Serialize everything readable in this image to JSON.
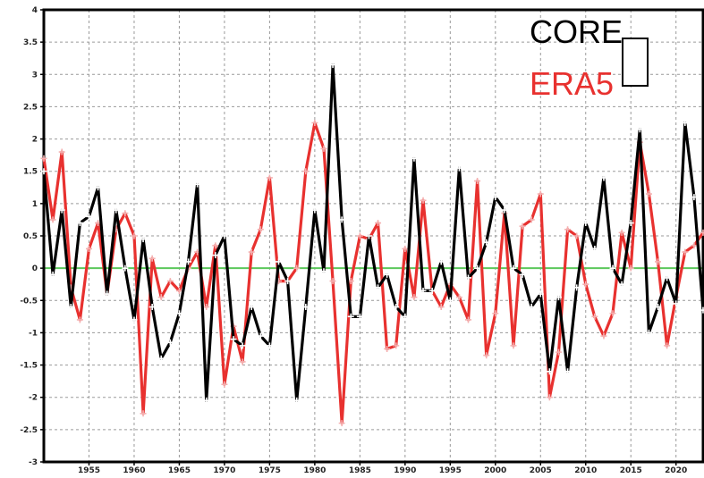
{
  "chart_data": {
    "type": "line",
    "title": "",
    "xlabel": "",
    "ylabel": "",
    "xlim": [
      1950,
      2023
    ],
    "ylim": [
      -3,
      4
    ],
    "grid": true,
    "legend_position": "top-right",
    "zero_line_color": "#5cc85c",
    "yticks": [
      {
        "value": 4,
        "label": "4"
      },
      {
        "value": 3.5,
        "label": "3.5"
      },
      {
        "value": 3,
        "label": "3"
      },
      {
        "value": 2.5,
        "label": "2.5"
      },
      {
        "value": 2,
        "label": "2"
      },
      {
        "value": 1.5,
        "label": "1.5"
      },
      {
        "value": 1,
        "label": "1"
      },
      {
        "value": 0.5,
        "label": "0.5"
      },
      {
        "value": 0,
        "label": "0"
      },
      {
        "value": -0.5,
        "label": "-0.5"
      },
      {
        "value": -1,
        "label": "-1"
      },
      {
        "value": -1.5,
        "label": "-1.5"
      },
      {
        "value": -2,
        "label": "-2"
      },
      {
        "value": -2.5,
        "label": "-2.5"
      },
      {
        "value": -3,
        "label": "-3"
      }
    ],
    "xticks": [
      {
        "value": 1955,
        "label": "1955"
      },
      {
        "value": 1960,
        "label": "1960"
      },
      {
        "value": 1965,
        "label": "1965"
      },
      {
        "value": 1970,
        "label": "1970"
      },
      {
        "value": 1975,
        "label": "1975"
      },
      {
        "value": 1980,
        "label": "1980"
      },
      {
        "value": 1985,
        "label": "1985"
      },
      {
        "value": 1990,
        "label": "1990"
      },
      {
        "value": 1995,
        "label": "1995"
      },
      {
        "value": 2000,
        "label": "2000"
      },
      {
        "value": 2005,
        "label": "2005"
      },
      {
        "value": 2010,
        "label": "2010"
      },
      {
        "value": 2015,
        "label": "2015"
      },
      {
        "value": 2020,
        "label": "2020"
      }
    ],
    "series": [
      {
        "name": "CORE",
        "color": "#000000",
        "x": [
          1950,
          1951,
          1952,
          1953,
          1954,
          1955,
          1956,
          1957,
          1958,
          1959,
          1960,
          1961,
          1962,
          1963,
          1964,
          1965,
          1966,
          1967,
          1968,
          1969,
          1970,
          1971,
          1972,
          1973,
          1974,
          1975,
          1976,
          1977,
          1978,
          1979,
          1980,
          1981,
          1982,
          1983,
          1984,
          1985,
          1986,
          1987,
          1988,
          1989,
          1990,
          1991,
          1992,
          1993,
          1994,
          1995,
          1996,
          1997,
          1998,
          1999,
          2000,
          2001,
          2002,
          2003,
          2004,
          2005,
          2006,
          2007,
          2008,
          2009,
          2010,
          2011,
          2012,
          2013,
          2014,
          2015,
          2016,
          2017,
          2018,
          2019,
          2020,
          2021,
          2022,
          2023
        ],
        "y": [
          1.5,
          -0.1,
          0.9,
          -0.6,
          0.7,
          0.8,
          1.25,
          -0.4,
          0.9,
          0.0,
          -0.8,
          0.45,
          -0.6,
          -1.4,
          -1.15,
          -0.7,
          0.1,
          1.3,
          -2.05,
          0.2,
          0.5,
          -1.1,
          -1.2,
          -0.6,
          -1.05,
          -1.2,
          0.1,
          -0.2,
          -2.05,
          -0.6,
          0.9,
          -0.05,
          3.15,
          0.75,
          -0.75,
          -0.75,
          0.5,
          -0.3,
          -0.1,
          -0.6,
          -0.75,
          1.7,
          -0.35,
          -0.35,
          0.1,
          -0.5,
          1.55,
          -0.15,
          0.0,
          0.4,
          1.1,
          0.9,
          0.0,
          -0.1,
          -0.6,
          -0.4,
          -1.6,
          -0.45,
          -1.6,
          -0.3,
          0.7,
          0.3,
          1.4,
          0.0,
          -0.25,
          0.7,
          2.15,
          -1.0,
          -0.6,
          -0.15,
          -0.55,
          2.25,
          1.1,
          -0.65
        ]
      },
      {
        "name": "ERA5",
        "color": "#e8312f",
        "x": [
          1950,
          1951,
          1952,
          1953,
          1954,
          1955,
          1956,
          1957,
          1958,
          1959,
          1960,
          1961,
          1962,
          1963,
          1964,
          1965,
          1966,
          1967,
          1968,
          1969,
          1970,
          1971,
          1972,
          1973,
          1974,
          1975,
          1976,
          1977,
          1978,
          1979,
          1980,
          1981,
          1982,
          1983,
          1984,
          1985,
          1986,
          1987,
          1988,
          1989,
          1990,
          1991,
          1992,
          1993,
          1994,
          1995,
          1996,
          1997,
          1998,
          1999,
          2000,
          2001,
          2002,
          2003,
          2004,
          2005,
          2006,
          2007,
          2008,
          2009,
          2010,
          2011,
          2012,
          2013,
          2014,
          2015,
          2016,
          2017,
          2018,
          2019,
          2020,
          2021,
          2022,
          2023
        ],
        "y": [
          1.7,
          0.75,
          1.8,
          -0.3,
          -0.8,
          0.3,
          0.7,
          -0.4,
          0.6,
          0.85,
          0.5,
          -2.25,
          0.15,
          -0.45,
          -0.2,
          -0.35,
          0.0,
          0.25,
          -0.6,
          0.35,
          -1.8,
          -0.9,
          -1.45,
          0.25,
          0.6,
          1.4,
          -0.2,
          -0.2,
          0.0,
          1.5,
          2.25,
          1.85,
          -0.2,
          -2.4,
          -0.2,
          0.5,
          0.45,
          0.7,
          -1.25,
          -1.2,
          0.3,
          -0.45,
          1.05,
          -0.35,
          -0.6,
          -0.25,
          -0.45,
          -0.8,
          1.35,
          -1.35,
          -0.7,
          0.85,
          -1.2,
          0.65,
          0.75,
          1.15,
          -2.0,
          -1.3,
          0.6,
          0.5,
          -0.25,
          -0.75,
          -1.05,
          -0.7,
          0.55,
          0.0,
          1.95,
          1.15,
          0.1,
          -1.2,
          -0.45,
          0.25,
          0.35,
          0.55
        ]
      }
    ]
  }
}
